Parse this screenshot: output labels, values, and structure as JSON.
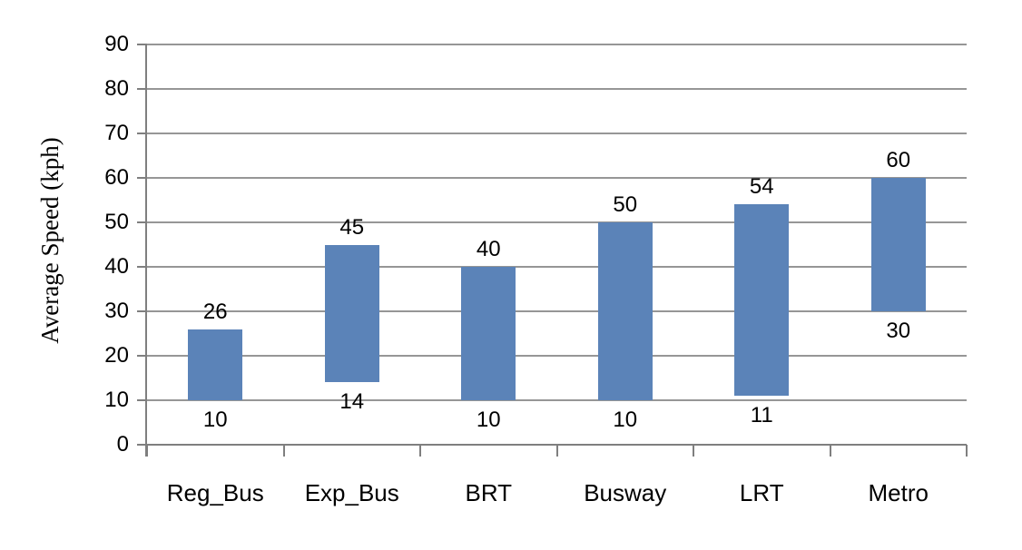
{
  "chart_data": {
    "type": "bar",
    "subtype": "floating-range-column",
    "title": "",
    "xlabel": "",
    "ylabel": "Average Speed (kph)",
    "categories": [
      "Reg_Bus",
      "Exp_Bus",
      "BRT",
      "Busway",
      "LRT",
      "Metro"
    ],
    "series": [
      {
        "name": "Average speed range",
        "low": [
          10,
          14,
          10,
          10,
          11,
          30
        ],
        "high": [
          26,
          45,
          40,
          50,
          54,
          60
        ]
      }
    ],
    "data_labels": {
      "high": [
        "26",
        "45",
        "40",
        "50",
        "54",
        "60"
      ],
      "low": [
        "10",
        "14",
        "10",
        "10",
        "11",
        "30"
      ]
    },
    "ylim": [
      0,
      90
    ],
    "yticks": [
      0,
      10,
      20,
      30,
      40,
      50,
      60,
      70,
      80,
      90
    ],
    "grid": "horizontal",
    "legend": "none",
    "colors": {
      "bar": "#5b83b8",
      "gridline": "#969696",
      "axis": "#7f7f7f",
      "text": "#000000",
      "background": "#ffffff"
    }
  }
}
